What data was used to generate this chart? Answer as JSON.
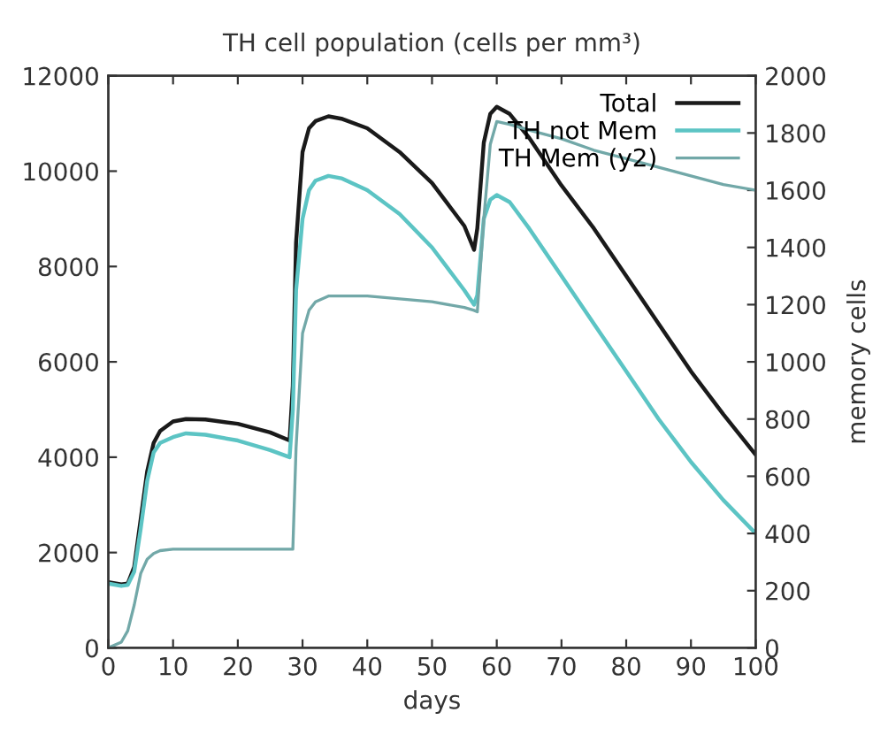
{
  "chart_data": {
    "type": "line",
    "title": "TH cell population (cells per mm³)",
    "xlabel": "days",
    "y2label": "memory cells",
    "x": [
      0,
      2,
      3,
      4,
      5,
      6,
      7,
      8,
      10,
      12,
      15,
      20,
      25,
      28,
      28.5,
      29,
      30,
      31,
      32,
      34,
      36,
      40,
      45,
      50,
      55,
      56.5,
      57,
      58,
      59,
      60,
      62,
      65,
      70,
      75,
      80,
      85,
      90,
      95,
      100
    ],
    "series": [
      {
        "name": "Total",
        "color": "#1a1a1a",
        "values": [
          1380,
          1330,
          1350,
          1700,
          2700,
          3700,
          4300,
          4550,
          4750,
          4800,
          4790,
          4700,
          4520,
          4350,
          5500,
          8500,
          10400,
          10900,
          11050,
          11150,
          11100,
          10900,
          10400,
          9750,
          8850,
          8350,
          8800,
          10600,
          11200,
          11350,
          11200,
          10700,
          9700,
          8800,
          7800,
          6800,
          5800,
          4900,
          4050
        ]
      },
      {
        "name": "TH not Mem",
        "color": "#5cc4c4",
        "values": [
          1350,
          1300,
          1320,
          1600,
          2500,
          3500,
          4100,
          4300,
          4420,
          4500,
          4470,
          4350,
          4150,
          4000,
          5000,
          7500,
          9000,
          9600,
          9800,
          9900,
          9850,
          9600,
          9100,
          8400,
          7500,
          7200,
          7400,
          9000,
          9400,
          9500,
          9350,
          8800,
          7800,
          6800,
          5800,
          4800,
          3900,
          3100,
          2400
        ]
      },
      {
        "name": "TH Mem (y2)",
        "color": "#72a8a8",
        "axis": "y2",
        "values": [
          0,
          20,
          60,
          150,
          260,
          310,
          330,
          340,
          345,
          345,
          345,
          345,
          345,
          345,
          345,
          700,
          1100,
          1180,
          1210,
          1230,
          1230,
          1230,
          1220,
          1210,
          1190,
          1180,
          1175,
          1500,
          1760,
          1840,
          1830,
          1810,
          1780,
          1740,
          1710,
          1680,
          1650,
          1620,
          1600
        ]
      }
    ],
    "xlim": [
      0,
      100
    ],
    "xticks": [
      0,
      10,
      20,
      30,
      40,
      50,
      60,
      70,
      80,
      90,
      100
    ],
    "ylim": [
      0,
      12000
    ],
    "yticks": [
      0,
      2000,
      4000,
      6000,
      8000,
      10000,
      12000
    ],
    "y2lim": [
      0,
      2000
    ],
    "y2ticks": [
      0,
      200,
      400,
      600,
      800,
      1000,
      1200,
      1400,
      1600,
      1800,
      2000
    ],
    "legend": "top right",
    "grid": false,
    "marker": "none",
    "line_style": "solid"
  }
}
